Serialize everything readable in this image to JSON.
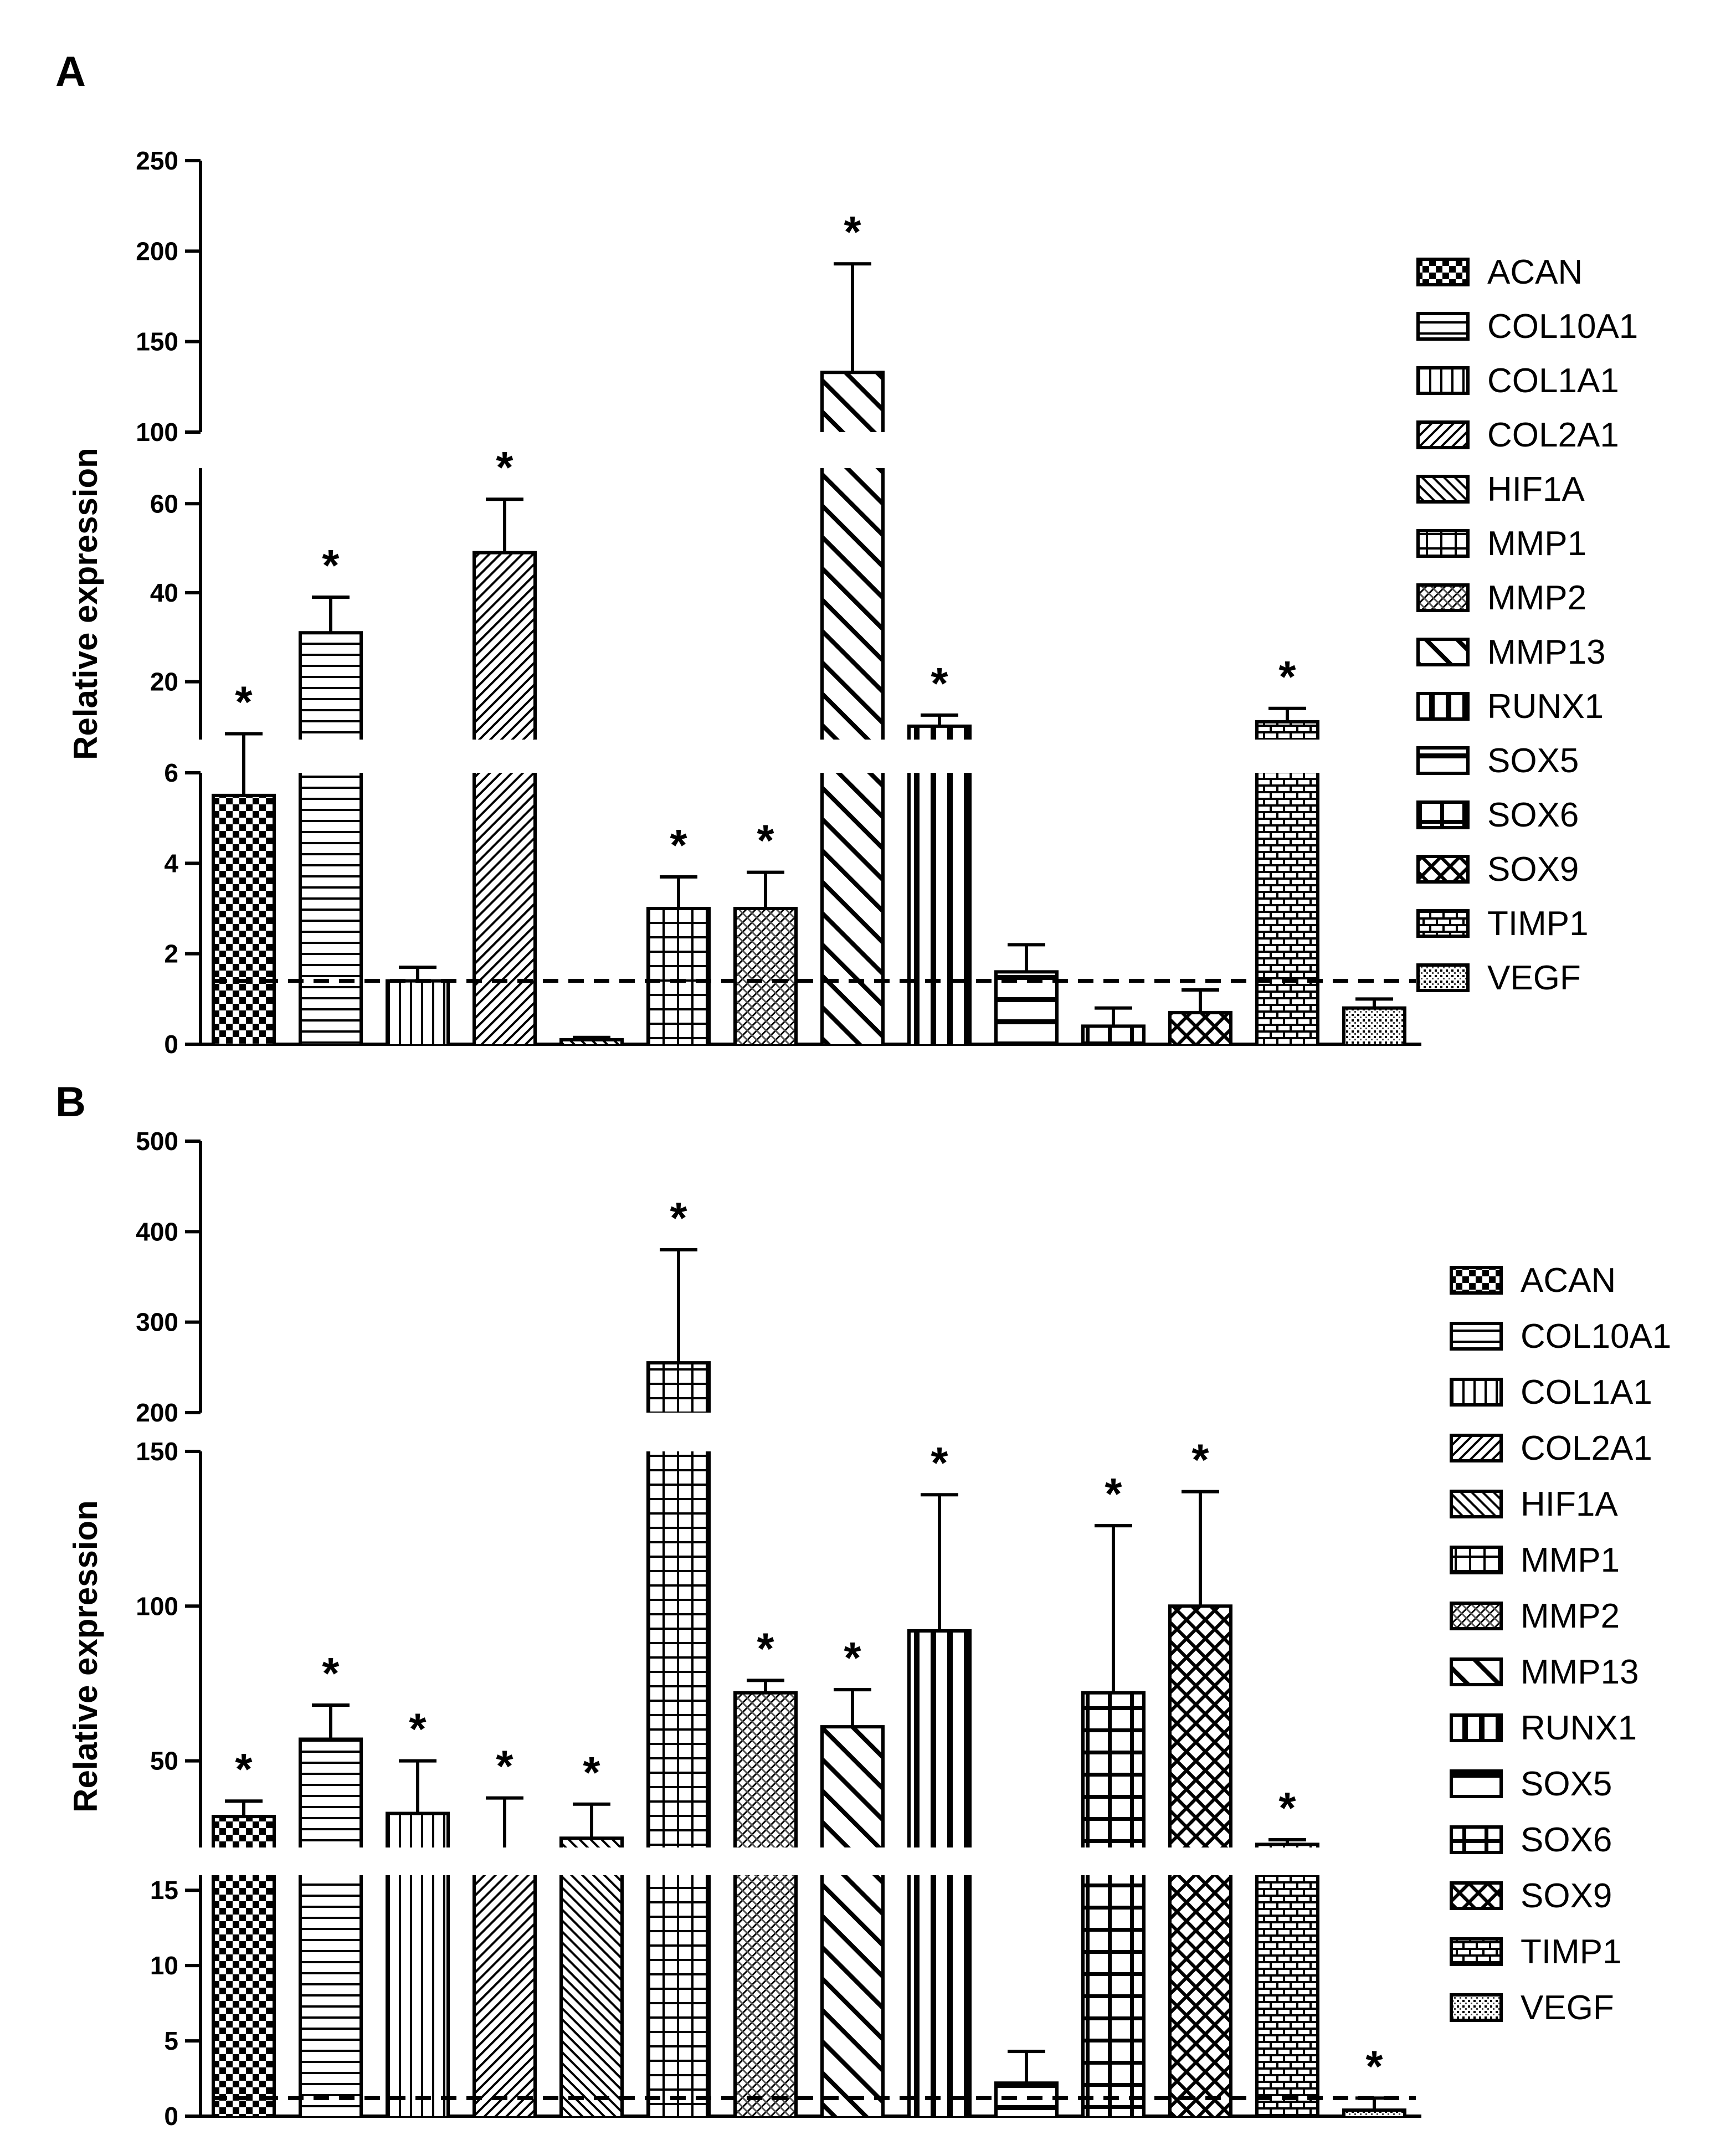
{
  "chart_data": [
    {
      "panel": "A",
      "type": "bar",
      "ylabel": "Relative expression",
      "reference_line": 1.4,
      "categories": [
        "ACAN",
        "COL10A1",
        "COL1A1",
        "COL2A1",
        "HIF1A",
        "MMP1",
        "MMP2",
        "MMP13",
        "RUNX1",
        "SOX5",
        "SOX6",
        "SOX9",
        "TIMP1",
        "VEGF"
      ],
      "values": [
        5.5,
        31,
        1.4,
        49,
        0.1,
        3,
        3,
        133,
        10,
        1.6,
        0.4,
        0.7,
        11,
        0.8
      ],
      "errors": [
        2.8,
        8,
        0.3,
        12,
        0.05,
        0.7,
        0.8,
        60,
        2.5,
        0.6,
        0.4,
        0.5,
        3,
        0.2
      ],
      "significant": [
        true,
        true,
        false,
        true,
        false,
        true,
        true,
        true,
        true,
        false,
        false,
        false,
        true,
        false
      ],
      "y_segments": [
        {
          "range": [
            0,
            6
          ],
          "ticks": [
            "0",
            "2",
            "4",
            "6"
          ]
        },
        {
          "range": [
            7,
            68
          ],
          "ticks": [
            "20",
            "40",
            "60"
          ]
        },
        {
          "range": [
            100,
            250
          ],
          "ticks": [
            "100",
            "150",
            "200",
            "250"
          ]
        }
      ],
      "legend": [
        "ACAN",
        "COL10A1",
        "COL1A1",
        "COL2A1",
        "HIF1A",
        "MMP1",
        "MMP2",
        "MMP13",
        "RUNX1",
        "SOX5",
        "SOX6",
        "SOX9",
        "TIMP1",
        "VEGF"
      ]
    },
    {
      "panel": "B",
      "type": "bar",
      "ylabel": "Relative expression",
      "reference_line": 1.2,
      "categories": [
        "ACAN",
        "COL10A1",
        "COL1A1",
        "COL2A1",
        "HIF1A",
        "MMP1",
        "MMP2",
        "MMP13",
        "RUNX1",
        "SOX5",
        "SOX6",
        "SOX9",
        "TIMP1",
        "VEGF"
      ],
      "values": [
        32,
        57,
        33,
        22,
        25,
        255,
        72,
        61,
        92,
        2.2,
        72,
        100,
        23,
        0.4
      ],
      "errors": [
        5,
        11,
        17,
        16,
        11,
        125,
        4,
        12,
        44,
        2.1,
        54,
        37,
        1.5,
        0.8
      ],
      "significant": [
        true,
        true,
        true,
        true,
        true,
        true,
        true,
        true,
        true,
        false,
        true,
        true,
        true,
        true
      ],
      "y_segments": [
        {
          "range": [
            0,
            16
          ],
          "ticks": [
            "0",
            "5",
            "10",
            "15"
          ]
        },
        {
          "range": [
            22,
            150
          ],
          "ticks": [
            "50",
            "100",
            "150"
          ]
        },
        {
          "range": [
            200,
            500
          ],
          "ticks": [
            "200",
            "300",
            "400",
            "500"
          ]
        }
      ],
      "legend": [
        "ACAN",
        "COL10A1",
        "COL1A1",
        "COL2A1",
        "HIF1A",
        "MMP1",
        "MMP2",
        "MMP13",
        "RUNX1",
        "SOX5",
        "SOX6",
        "SOX9",
        "TIMP1",
        "VEGF"
      ]
    }
  ]
}
